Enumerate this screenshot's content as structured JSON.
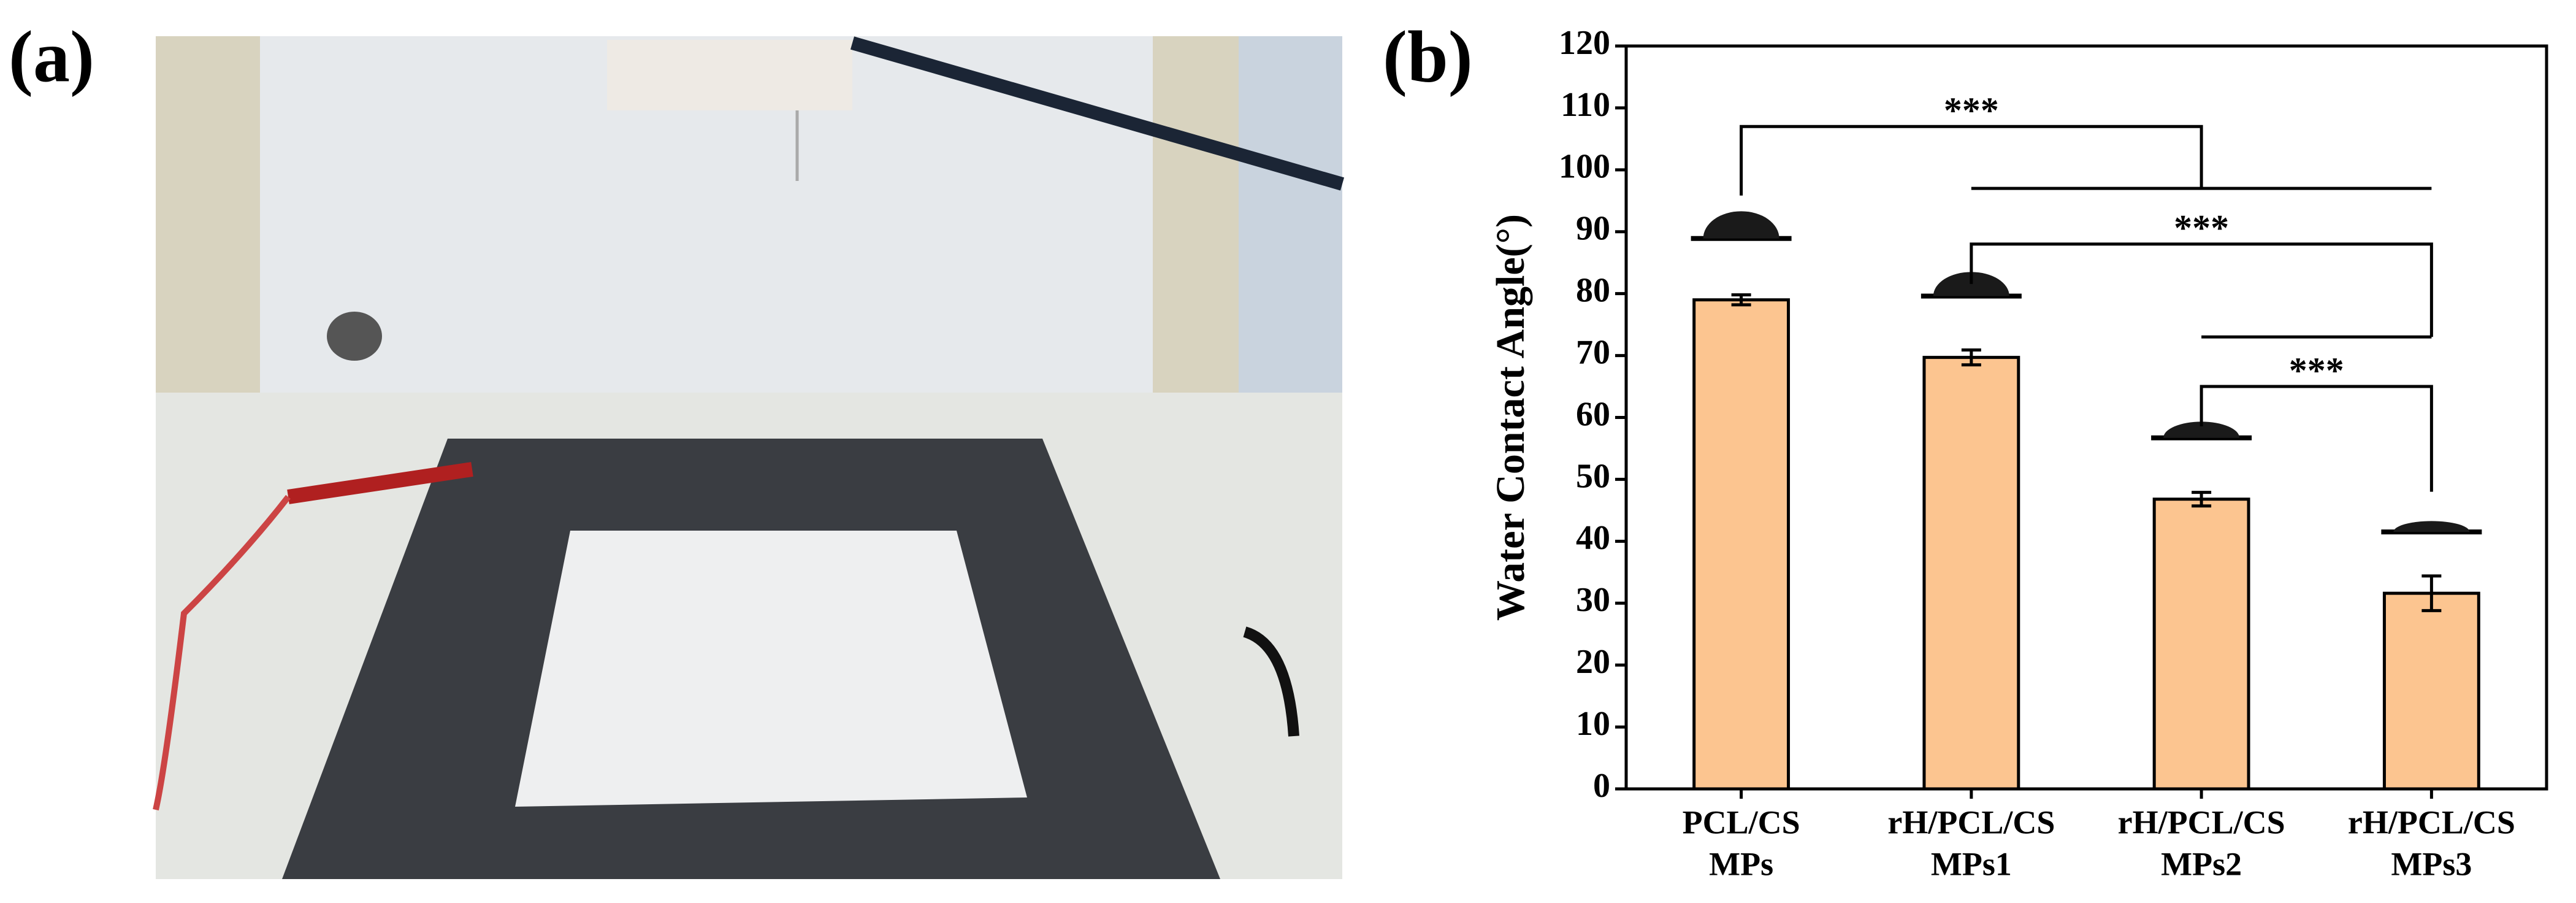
{
  "panel_labels": [
    "(a)",
    "(b)"
  ],
  "chart_data": {
    "type": "bar",
    "ylabel": "Water Contact Angle(°)",
    "categories": [
      [
        "PCL/CS",
        "MPs"
      ],
      [
        "rH/PCL/CS",
        "MPs1"
      ],
      [
        "rH/PCL/CS",
        "MPs2"
      ],
      [
        "rH/PCL/CS",
        "MPs3"
      ]
    ],
    "values": [
      79,
      69.7,
      46.8,
      31.6
    ],
    "errors": [
      0.8,
      1.2,
      1.1,
      2.8
    ],
    "color": "#fcc590",
    "ylim": [
      0,
      120
    ],
    "yticks": [
      0,
      10,
      20,
      30,
      40,
      50,
      60,
      70,
      80,
      90,
      100,
      110,
      120
    ],
    "annotations": [
      {
        "text": "***",
        "from": 0,
        "to": [
          1,
          3
        ],
        "y": 107,
        "to_y": 97
      },
      {
        "text": "***",
        "from": 1,
        "to": [
          2,
          3
        ],
        "y": 88,
        "to_y": 73
      },
      {
        "text": "***",
        "from": 2,
        "to": [
          3,
          3
        ],
        "y": 65,
        "to_y": 48
      }
    ]
  }
}
